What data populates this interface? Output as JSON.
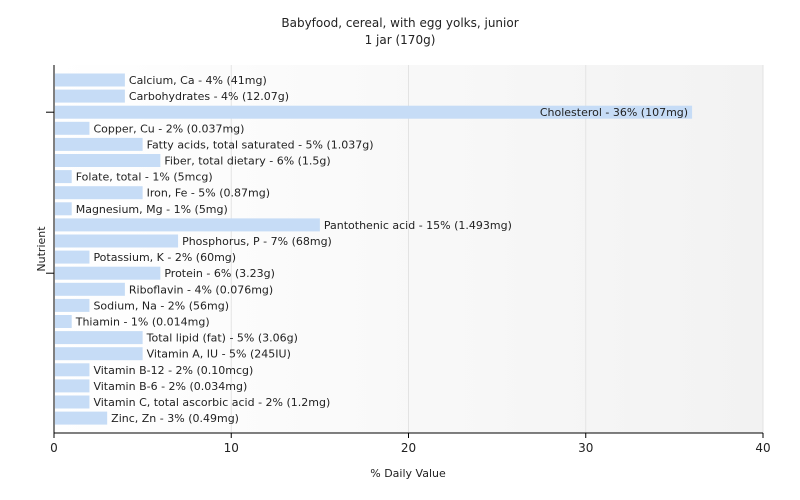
{
  "chart_data": {
    "type": "bar",
    "orientation": "horizontal",
    "title": "Babyfood, cereal, with egg yolks, junior",
    "subtitle": "1 jar (170g)",
    "xlabel": "% Daily Value",
    "ylabel": "Nutrient",
    "xlim": [
      0,
      40
    ],
    "xticks": [
      0,
      10,
      20,
      30,
      40
    ],
    "grid": true,
    "bar_color": "#c6dcf6",
    "categories": [
      "Calcium, Ca - 4% (41mg)",
      "Carbohydrates - 4% (12.07g)",
      "Cholesterol - 36% (107mg)",
      "Copper, Cu - 2% (0.037mg)",
      "Fatty acids, total saturated - 5% (1.037g)",
      "Fiber, total dietary - 6% (1.5g)",
      "Folate, total - 1% (5mcg)",
      "Iron, Fe - 5% (0.87mg)",
      "Magnesium, Mg - 1% (5mg)",
      "Pantothenic acid - 15% (1.493mg)",
      "Phosphorus, P - 7% (68mg)",
      "Potassium, K - 2% (60mg)",
      "Protein - 6% (3.23g)",
      "Riboflavin - 4% (0.076mg)",
      "Sodium, Na - 2% (56mg)",
      "Thiamin - 1% (0.014mg)",
      "Total lipid (fat) - 5% (3.06g)",
      "Vitamin A, IU - 5% (245IU)",
      "Vitamin B-12 - 2% (0.10mcg)",
      "Vitamin B-6 - 2% (0.034mg)",
      "Vitamin C, total ascorbic acid - 2% (1.2mg)",
      "Zinc, Zn - 3% (0.49mg)"
    ],
    "values": [
      4,
      4,
      36,
      2,
      5,
      6,
      1,
      5,
      1,
      15,
      7,
      2,
      6,
      4,
      2,
      1,
      5,
      5,
      2,
      2,
      2,
      3
    ]
  }
}
